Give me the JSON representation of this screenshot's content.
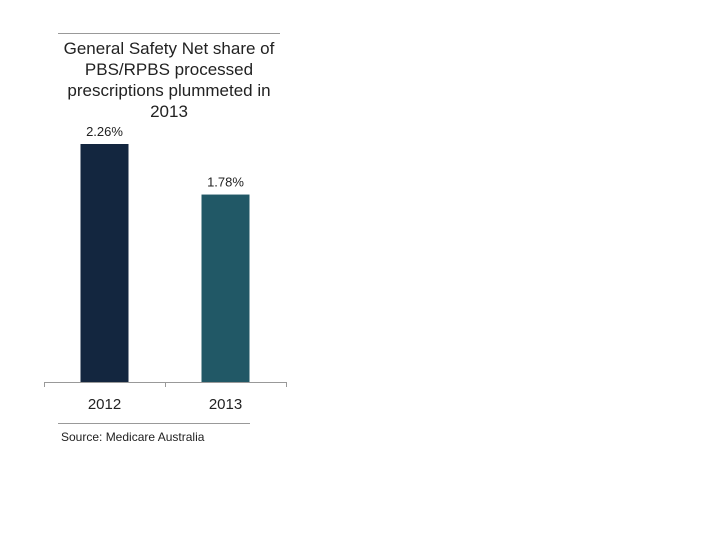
{
  "chart_data": {
    "type": "bar",
    "title": "General Safety Net share of PBS/RPBS processed prescriptions plummeted in 2013",
    "categories": [
      "2012",
      "2013"
    ],
    "values": [
      2.26,
      1.78
    ],
    "data_labels": [
      "2.26%",
      "1.78%"
    ],
    "colors": [
      "#13263f",
      "#215866"
    ],
    "xlabel": "",
    "ylabel": "",
    "ylim": [
      0,
      2.26
    ],
    "grid": false,
    "source": "Source: Medicare Australia"
  }
}
